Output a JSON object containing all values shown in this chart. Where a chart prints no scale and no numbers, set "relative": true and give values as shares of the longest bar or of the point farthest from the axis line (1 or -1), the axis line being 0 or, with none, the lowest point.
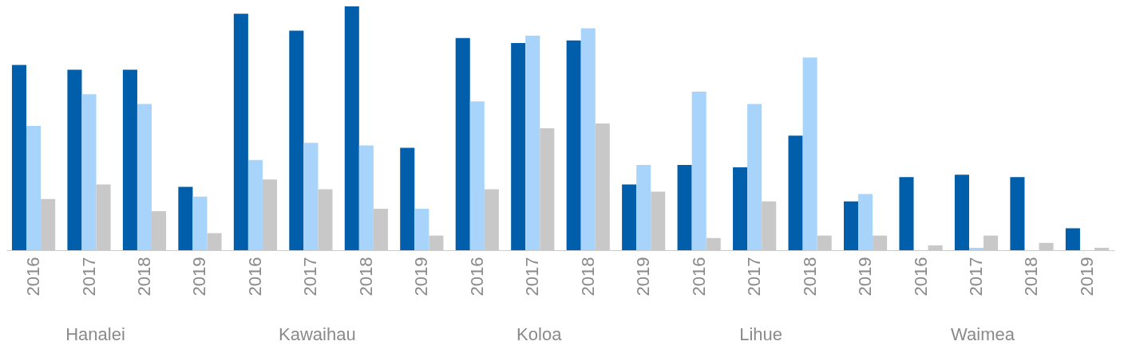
{
  "chart_data": {
    "type": "bar",
    "relative": true,
    "categories": [
      "2016",
      "2017",
      "2018",
      "2019",
      "2016",
      "2017",
      "2018",
      "2019",
      "2016",
      "2017",
      "2018",
      "2019",
      "2016",
      "2017",
      "2018",
      "2019",
      "2016",
      "2017",
      "2018",
      "2019"
    ],
    "annotations": [
      "Hanalei",
      "Kawaihau",
      "Koloa",
      "Lihue",
      "Waimea"
    ],
    "series": [
      {
        "color": "#005eaa",
        "values": [
          0.76,
          0.74,
          0.74,
          0.26,
          0.97,
          0.9,
          1,
          0.42,
          0.87,
          0.85,
          0.86,
          0.27,
          0.35,
          0.34,
          0.47,
          0.2,
          0.3,
          0.31,
          0.3,
          0.09
        ]
      },
      {
        "color": "#a8d4fb",
        "values": [
          0.51,
          0.64,
          0.6,
          0.22,
          0.37,
          0.44,
          0.43,
          0.17,
          0.61,
          0.88,
          0.91,
          0.35,
          0.65,
          0.6,
          0.79,
          0.23,
          0,
          0.01,
          0,
          0
        ]
      },
      {
        "color": "#c8c8c8",
        "values": [
          0.21,
          0.27,
          0.16,
          0.07,
          0.29,
          0.25,
          0.17,
          0.06,
          0.25,
          0.5,
          0.52,
          0.24,
          0.05,
          0.2,
          0.06,
          0.06,
          0.02,
          0.06,
          0.03,
          0.01
        ]
      }
    ]
  }
}
